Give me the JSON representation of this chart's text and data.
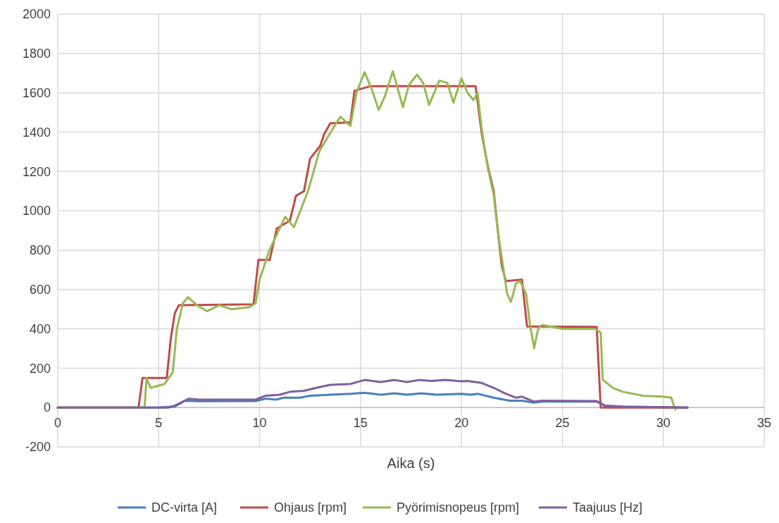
{
  "chart_data": {
    "type": "line",
    "xlabel": "Aika (s)",
    "xlim": [
      0,
      35
    ],
    "xticks": [
      0,
      5,
      10,
      15,
      20,
      25,
      30,
      35
    ],
    "ylim": [
      -200,
      2000
    ],
    "yticks": [
      -200,
      0,
      200,
      400,
      600,
      800,
      1000,
      1200,
      1400,
      1600,
      1800,
      2000
    ],
    "grid": true,
    "legend": "bottom",
    "marker": "none",
    "line_style": "solid",
    "series": [
      {
        "name": "DC-virta [A]",
        "color": "#4a7ebb",
        "x": [
          0,
          5,
          5.8,
          6.3,
          7,
          9.8,
          10.3,
          10.8,
          11.2,
          12,
          12.5,
          13.5,
          14.5,
          15.2,
          16,
          16.7,
          17.3,
          18,
          18.8,
          20,
          20.5,
          20.8,
          21.6,
          22.4,
          23,
          23.6,
          24,
          26.7,
          27.1,
          28,
          31.2
        ],
        "values": [
          0,
          0,
          5,
          35,
          32,
          33,
          45,
          40,
          50,
          50,
          60,
          65,
          70,
          75,
          65,
          72,
          65,
          72,
          65,
          70,
          65,
          70,
          50,
          35,
          35,
          25,
          30,
          30,
          10,
          3,
          0
        ]
      },
      {
        "name": "Ohjaus [rpm]",
        "color": "#be4b48",
        "x": [
          0,
          4.0,
          4.2,
          5.4,
          5.6,
          5.8,
          6.0,
          9.7,
          9.94,
          10.5,
          10.85,
          11.5,
          11.8,
          12.2,
          12.5,
          13.0,
          13.2,
          13.5,
          14.5,
          14.7,
          15.5,
          20.7,
          21.0,
          21.3,
          21.6,
          21.8,
          22.0,
          22.2,
          23.0,
          23.25,
          26.7,
          26.9,
          31.2
        ],
        "values": [
          0,
          0,
          150,
          150,
          350,
          480,
          520,
          525,
          750,
          750,
          910,
          950,
          1076,
          1100,
          1265,
          1330,
          1390,
          1445,
          1450,
          1610,
          1634,
          1634,
          1396,
          1230,
          1100,
          900,
          720,
          643,
          650,
          412,
          410,
          0,
          0
        ]
      },
      {
        "name": "Pyörimisnopeus [rpm]",
        "color": "#98b954",
        "x": [
          0,
          4.3,
          4.4,
          4.6,
          5.3,
          5.7,
          5.9,
          6.2,
          6.45,
          6.9,
          7.4,
          8,
          8.6,
          9.5,
          9.8,
          10.0,
          10.5,
          11.27,
          11.7,
          12.4,
          12.95,
          13.5,
          14.0,
          14.5,
          14.8,
          15.2,
          15.55,
          15.9,
          16.2,
          16.6,
          17.1,
          17.4,
          17.8,
          18.1,
          18.4,
          18.9,
          19.3,
          19.6,
          20.0,
          20.3,
          20.6,
          20.8,
          21.0,
          21.3,
          21.6,
          21.8,
          22.0,
          22.26,
          22.45,
          22.7,
          22.9,
          23.2,
          23.4,
          23.6,
          23.8,
          24.0,
          25,
          26.6,
          26.9,
          27.0,
          27.5,
          28,
          29,
          30,
          30.4,
          30.55,
          30.6
        ],
        "values": [
          0,
          0,
          150,
          100,
          120,
          180,
          400,
          530,
          561,
          520,
          490,
          520,
          500,
          510,
          530,
          650,
          803,
          970,
          917,
          1100,
          1300,
          1396,
          1478,
          1432,
          1600,
          1705,
          1620,
          1513,
          1580,
          1710,
          1527,
          1640,
          1692,
          1650,
          1538,
          1662,
          1650,
          1550,
          1673,
          1600,
          1563,
          1600,
          1420,
          1220,
          1080,
          900,
          760,
          580,
          537,
          630,
          643,
          580,
          420,
          302,
          400,
          420,
          400,
          400,
          380,
          142,
          100,
          80,
          60,
          55,
          50,
          0,
          -10
        ]
      },
      {
        "name": "Taajuus [Hz]",
        "color": "#7d60a0",
        "x": [
          0,
          5.5,
          5.8,
          6.5,
          7,
          9.8,
          10.3,
          11,
          11.5,
          12.2,
          12.8,
          13.5,
          14.5,
          15.2,
          16,
          16.7,
          17.3,
          17.9,
          18.5,
          19.2,
          20,
          20.3,
          21,
          21.6,
          22.2,
          22.7,
          23,
          23.6,
          24,
          26.7,
          27.1,
          28,
          31.2
        ],
        "values": [
          0,
          0,
          10,
          45,
          40,
          40,
          60,
          65,
          80,
          85,
          100,
          115,
          120,
          140,
          130,
          140,
          130,
          140,
          135,
          140,
          133,
          135,
          125,
          100,
          70,
          50,
          55,
          30,
          35,
          33,
          10,
          5,
          0
        ]
      }
    ]
  }
}
